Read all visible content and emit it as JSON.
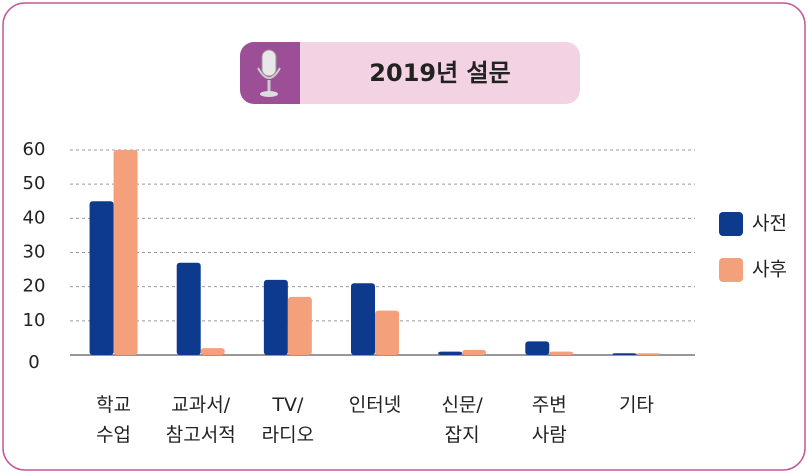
{
  "chart_data": {
    "type": "bar",
    "title": "2019년 설문",
    "categories": [
      [
        "학교",
        "수업"
      ],
      [
        "교과서/",
        "참고서적"
      ],
      [
        "TV/",
        "라디오"
      ],
      [
        "인터넷"
      ],
      [
        "신문/",
        "잡지"
      ],
      [
        "주변",
        "사람"
      ],
      [
        "기타"
      ]
    ],
    "series": [
      {
        "name": "사전",
        "color": "#0d3a8c",
        "values": [
          45,
          27,
          22,
          21,
          1,
          4,
          0.5
        ]
      },
      {
        "name": "사후",
        "color": "#f4a07a",
        "values": [
          60,
          2,
          17,
          13,
          1.5,
          1,
          0.5
        ]
      }
    ],
    "ylim": [
      0,
      60
    ],
    "yticks": [
      0,
      10,
      20,
      30,
      40,
      50,
      60
    ],
    "grid": true,
    "legend": "right"
  }
}
